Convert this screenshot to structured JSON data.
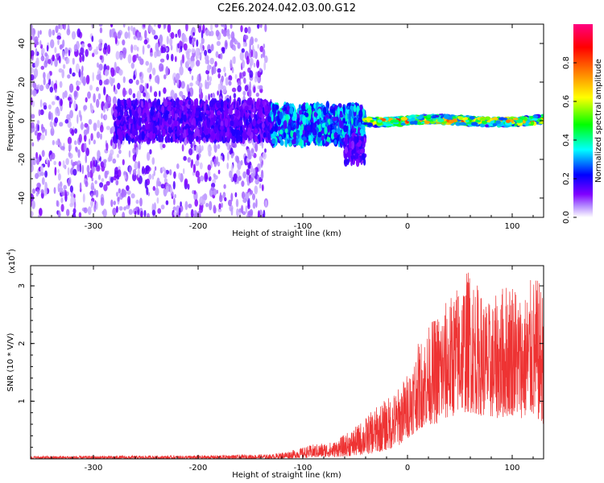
{
  "figure": {
    "title": "C2E6.2024.042.03.00.G12"
  },
  "chart_data": [
    {
      "type": "heatmap",
      "xlabel": "Height of straight line (km)",
      "ylabel": "Frequency (Hz)",
      "xlim": [
        -360,
        130
      ],
      "ylim": [
        -50,
        50
      ],
      "xticks": [
        -300,
        -200,
        -100,
        0,
        100
      ],
      "yticks": [
        -40,
        -20,
        0,
        20,
        40
      ],
      "colorbar": {
        "label": "Normalized spectral amplitude",
        "range": [
          0,
          1
        ],
        "ticks": [
          0.0,
          0.2,
          0.4,
          0.6,
          0.8
        ],
        "tick_labels": [
          "0.0",
          "0.2",
          "0.4",
          "0.6",
          "0.8"
        ],
        "colormap": [
          "#ffffff",
          "#8000ff",
          "#0000ff",
          "#00ffff",
          "#00ff00",
          "#ffff00",
          "#ff8000",
          "#ff0000",
          "#ff0080"
        ]
      },
      "description_regions": [
        {
          "x_range": [
            -360,
            -135
          ],
          "freq_range": [
            -50,
            50
          ],
          "amplitude": [
            0.02,
            0.15
          ]
        },
        {
          "x_range": [
            -280,
            -130
          ],
          "freq_range": [
            -10,
            10
          ],
          "amplitude": [
            0.1,
            0.2
          ]
        },
        {
          "x_range": [
            -130,
            -40
          ],
          "freq_range": [
            -12,
            8
          ],
          "amplitude": [
            0.15,
            0.4
          ]
        },
        {
          "x_range": [
            -60,
            -40
          ],
          "freq_range": [
            -22,
            -8
          ],
          "amplitude": [
            0.1,
            0.2
          ]
        },
        {
          "x_range": [
            -40,
            130
          ],
          "freq_range": [
            -4,
            4
          ],
          "amplitude": [
            0.3,
            0.9
          ]
        }
      ]
    },
    {
      "type": "line",
      "xlabel": "Height of straight line (km)",
      "ylabel": "SNR (10 * V/V)",
      "y_multiplier_label": "(x10",
      "y_multiplier_exp": "4",
      "xlim": [
        -360,
        130
      ],
      "ylim": [
        0,
        3.35
      ],
      "xticks": [
        -300,
        -200,
        -100,
        0,
        100
      ],
      "yticks": [
        1,
        2,
        3
      ],
      "color": "#ee3333",
      "envelope_points": {
        "x": [
          -360,
          -200,
          -130,
          -110,
          -90,
          -70,
          -50,
          -30,
          -10,
          0,
          10,
          20,
          30,
          40,
          50,
          60,
          70,
          80,
          90,
          100,
          110,
          120,
          130
        ],
        "y_max": [
          0.05,
          0.06,
          0.08,
          0.15,
          0.25,
          0.3,
          0.55,
          0.9,
          1.2,
          1.5,
          2.0,
          2.3,
          2.6,
          2.8,
          3.1,
          3.35,
          2.9,
          2.7,
          3.0,
          3.2,
          2.8,
          3.2,
          3.0
        ],
        "y_min": [
          0.0,
          0.0,
          0.0,
          0.01,
          0.02,
          0.03,
          0.05,
          0.1,
          0.2,
          0.35,
          0.5,
          0.6,
          0.6,
          0.7,
          0.8,
          0.8,
          0.75,
          0.7,
          0.7,
          0.75,
          0.7,
          0.7,
          0.6
        ]
      }
    }
  ]
}
